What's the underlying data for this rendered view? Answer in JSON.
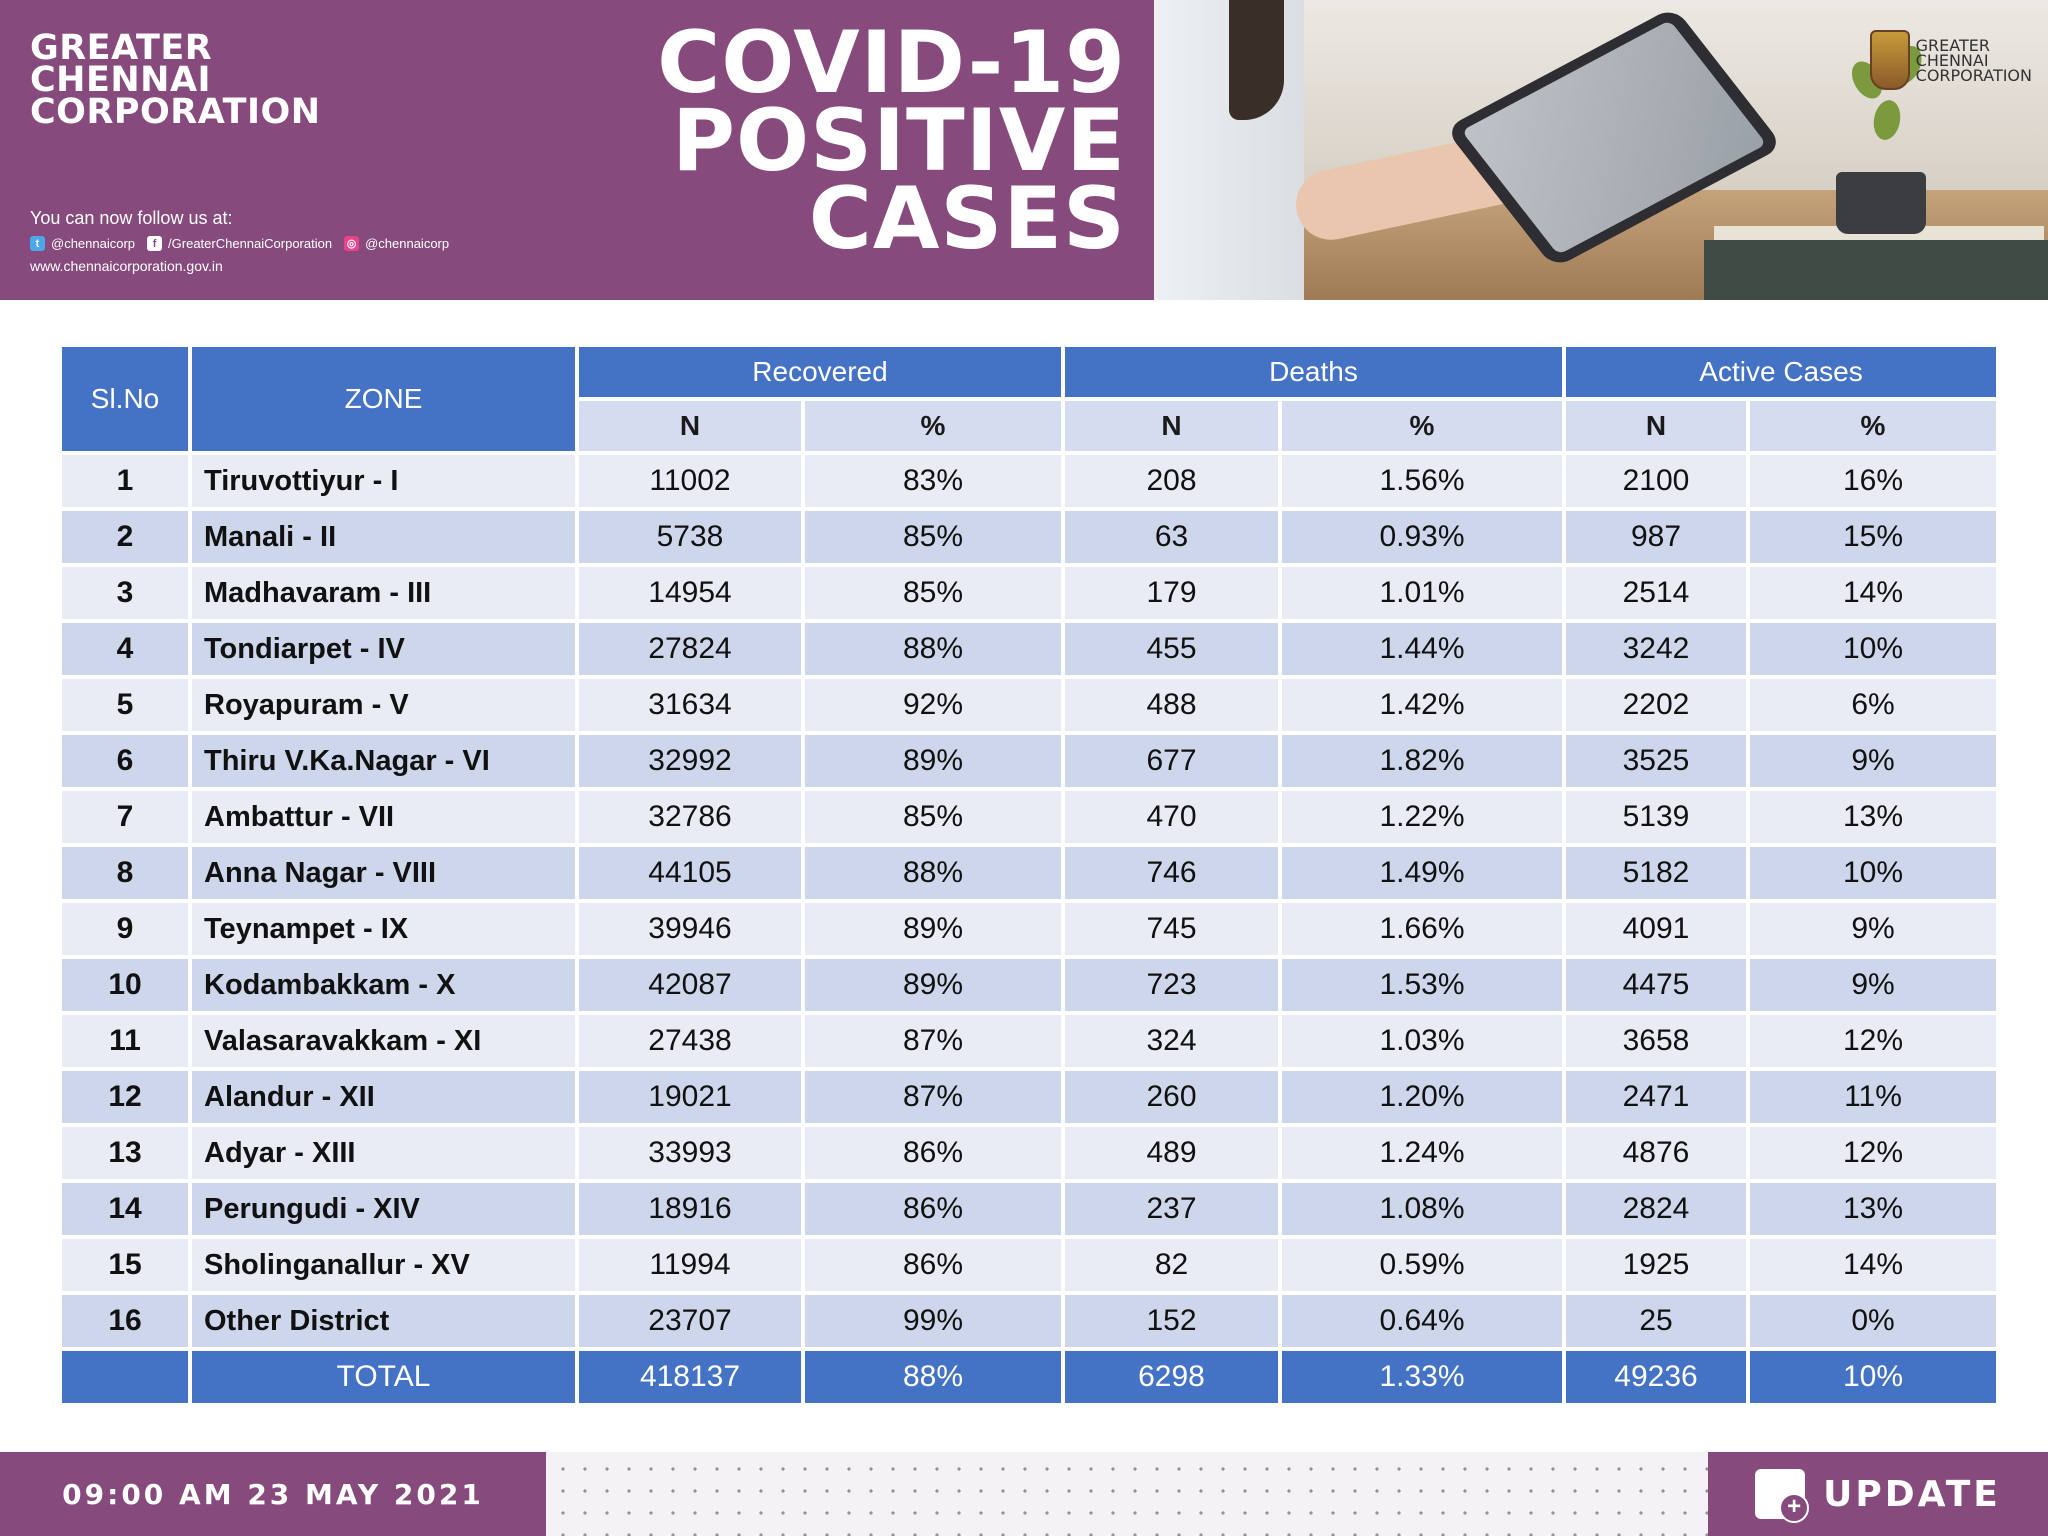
{
  "header": {
    "org_line1": "GREATER",
    "org_line2": "CHENNAI",
    "org_line3": "CORPORATION",
    "follow_text": "You can now follow us at:",
    "twitter": "@chennaicorp",
    "facebook": "/GreaterChennaiCorporation",
    "instagram": "@chennaicorp",
    "website": "www.chennaicorporation.gov.in",
    "title_line1": "COVID-19",
    "title_line2": "POSITIVE",
    "title_line3": "CASES",
    "logo_line1": "GREATER",
    "logo_line2": "CHENNAI",
    "logo_line3": "CORPORATION"
  },
  "table": {
    "col_slno": "Sl.No",
    "col_zone": "ZONE",
    "group_recovered": "Recovered",
    "group_deaths": "Deaths",
    "group_active": "Active Cases",
    "sub_n": "N",
    "sub_pct": "%",
    "rows": [
      {
        "sl": "1",
        "zone": "Tiruvottiyur - I",
        "rec_n": "11002",
        "rec_p": "83%",
        "d_n": "208",
        "d_p": "1.56%",
        "a_n": "2100",
        "a_p": "16%"
      },
      {
        "sl": "2",
        "zone": "Manali - II",
        "rec_n": "5738",
        "rec_p": "85%",
        "d_n": "63",
        "d_p": "0.93%",
        "a_n": "987",
        "a_p": "15%"
      },
      {
        "sl": "3",
        "zone": "Madhavaram - III",
        "rec_n": "14954",
        "rec_p": "85%",
        "d_n": "179",
        "d_p": "1.01%",
        "a_n": "2514",
        "a_p": "14%"
      },
      {
        "sl": "4",
        "zone": "Tondiarpet - IV",
        "rec_n": "27824",
        "rec_p": "88%",
        "d_n": "455",
        "d_p": "1.44%",
        "a_n": "3242",
        "a_p": "10%"
      },
      {
        "sl": "5",
        "zone": "Royapuram - V",
        "rec_n": "31634",
        "rec_p": "92%",
        "d_n": "488",
        "d_p": "1.42%",
        "a_n": "2202",
        "a_p": "6%"
      },
      {
        "sl": "6",
        "zone": "Thiru V.Ka.Nagar - VI",
        "rec_n": "32992",
        "rec_p": "89%",
        "d_n": "677",
        "d_p": "1.82%",
        "a_n": "3525",
        "a_p": "9%"
      },
      {
        "sl": "7",
        "zone": "Ambattur - VII",
        "rec_n": "32786",
        "rec_p": "85%",
        "d_n": "470",
        "d_p": "1.22%",
        "a_n": "5139",
        "a_p": "13%"
      },
      {
        "sl": "8",
        "zone": "Anna Nagar - VIII",
        "rec_n": "44105",
        "rec_p": "88%",
        "d_n": "746",
        "d_p": "1.49%",
        "a_n": "5182",
        "a_p": "10%"
      },
      {
        "sl": "9",
        "zone": "Teynampet - IX",
        "rec_n": "39946",
        "rec_p": "89%",
        "d_n": "745",
        "d_p": "1.66%",
        "a_n": "4091",
        "a_p": "9%"
      },
      {
        "sl": "10",
        "zone": "Kodambakkam - X",
        "rec_n": "42087",
        "rec_p": "89%",
        "d_n": "723",
        "d_p": "1.53%",
        "a_n": "4475",
        "a_p": "9%"
      },
      {
        "sl": "11",
        "zone": "Valasaravakkam - XI",
        "rec_n": "27438",
        "rec_p": "87%",
        "d_n": "324",
        "d_p": "1.03%",
        "a_n": "3658",
        "a_p": "12%"
      },
      {
        "sl": "12",
        "zone": "Alandur - XII",
        "rec_n": "19021",
        "rec_p": "87%",
        "d_n": "260",
        "d_p": "1.20%",
        "a_n": "2471",
        "a_p": "11%"
      },
      {
        "sl": "13",
        "zone": "Adyar - XIII",
        "rec_n": "33993",
        "rec_p": "86%",
        "d_n": "489",
        "d_p": "1.24%",
        "a_n": "4876",
        "a_p": "12%"
      },
      {
        "sl": "14",
        "zone": "Perungudi - XIV",
        "rec_n": "18916",
        "rec_p": "86%",
        "d_n": "237",
        "d_p": "1.08%",
        "a_n": "2824",
        "a_p": "13%"
      },
      {
        "sl": "15",
        "zone": "Sholinganallur - XV",
        "rec_n": "11994",
        "rec_p": "86%",
        "d_n": "82",
        "d_p": "0.59%",
        "a_n": "1925",
        "a_p": "14%"
      },
      {
        "sl": "16",
        "zone": "Other District",
        "rec_n": "23707",
        "rec_p": "99%",
        "d_n": "152",
        "d_p": "0.64%",
        "a_n": "25",
        "a_p": "0%"
      }
    ],
    "total": {
      "label": "TOTAL",
      "rec_n": "418137",
      "rec_p": "88%",
      "d_n": "6298",
      "d_p": "1.33%",
      "a_n": "49236",
      "a_p": "10%"
    }
  },
  "footer": {
    "datetime": "09:00 AM 23 MAY 2021",
    "update_label": "UPDATE"
  },
  "colors": {
    "brand_purple": "#874a7c",
    "header_blue": "#4472c4",
    "row_light": "#e9ecf5",
    "row_dark": "#ced6ec"
  }
}
